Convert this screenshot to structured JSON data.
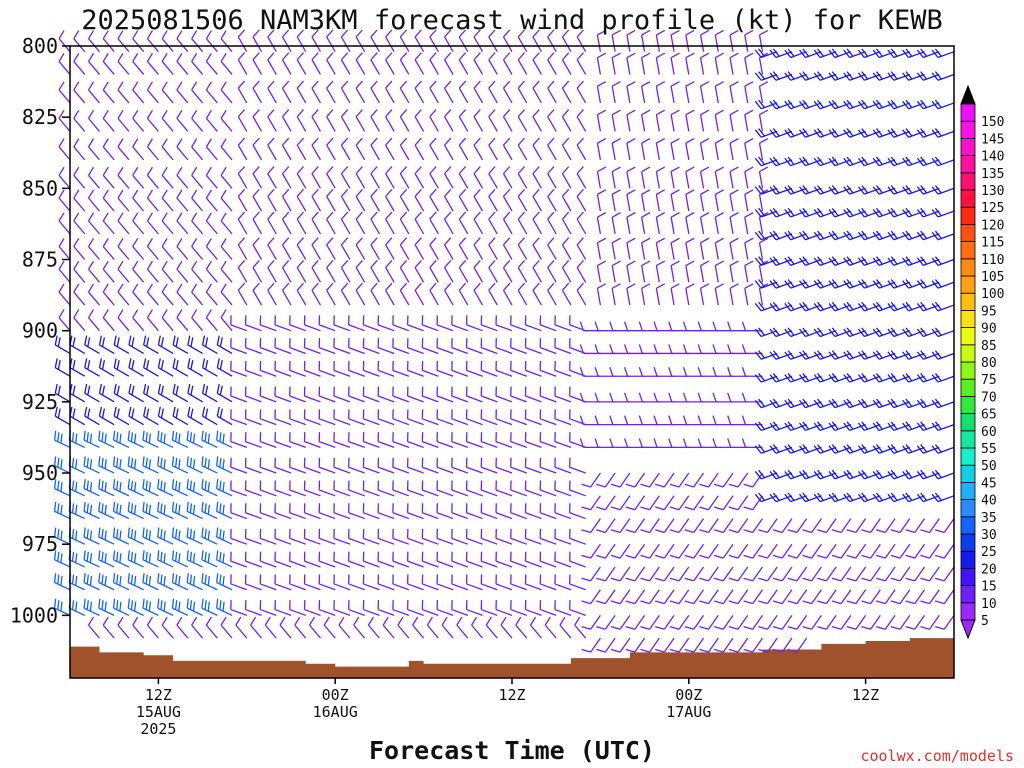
{
  "chart_data": {
    "type": "wind-barb-time-height",
    "title": "2025081506 NAM3KM forecast wind profile (kt) for KEWB",
    "xlabel": "Forecast Time (UTC)",
    "ylabel": "",
    "credit": "coolwx.com/models",
    "y_axis": {
      "ticks": [
        800,
        825,
        850,
        875,
        900,
        925,
        950,
        975,
        1000
      ],
      "range": [
        800,
        1022
      ],
      "reversed": true,
      "unit": "hPa"
    },
    "x_axis": {
      "range_hours": [
        0,
        60
      ],
      "ticks": [
        {
          "hour": 6,
          "lines": [
            "12Z",
            "15AUG",
            "2025"
          ]
        },
        {
          "hour": 18,
          "lines": [
            "00Z",
            "16AUG"
          ]
        },
        {
          "hour": 30,
          "lines": [
            "12Z"
          ]
        },
        {
          "hour": 42,
          "lines": [
            "00Z",
            "17AUG"
          ]
        },
        {
          "hour": 54,
          "lines": [
            "12Z"
          ]
        }
      ]
    },
    "colorbar": {
      "levels": [
        5,
        10,
        15,
        20,
        25,
        30,
        35,
        40,
        45,
        50,
        55,
        60,
        65,
        70,
        75,
        80,
        85,
        90,
        95,
        100,
        105,
        110,
        115,
        120,
        125,
        130,
        135,
        140,
        145,
        150
      ],
      "colors": [
        "#9b29ff",
        "#6f1fff",
        "#4412ff",
        "#1818f0",
        "#0a3cf0",
        "#1464ff",
        "#2a8cff",
        "#1fb0ff",
        "#13d0e8",
        "#14f0c8",
        "#13e8a0",
        "#13e070",
        "#33e83c",
        "#5af020",
        "#8cf814",
        "#c8fa10",
        "#f0fa10",
        "#ffe010",
        "#ffc010",
        "#ffa010",
        "#ff8a10",
        "#ff7010",
        "#ff5010",
        "#ff2810",
        "#ff1040",
        "#ff1070",
        "#ff10a0",
        "#ff10c8",
        "#ff10e8",
        "#f010ff"
      ],
      "arrows": true
    },
    "grid": false,
    "terrain_color": "#a0522d",
    "surface_pressure": [
      {
        "hour": 0,
        "p": 1011
      },
      {
        "hour": 2,
        "p": 1013
      },
      {
        "hour": 5,
        "p": 1014
      },
      {
        "hour": 7,
        "p": 1016
      },
      {
        "hour": 11,
        "p": 1016
      },
      {
        "hour": 14,
        "p": 1016
      },
      {
        "hour": 16,
        "p": 1017
      },
      {
        "hour": 18,
        "p": 1018
      },
      {
        "hour": 23,
        "p": 1016
      },
      {
        "hour": 24,
        "p": 1017
      },
      {
        "hour": 30,
        "p": 1017
      },
      {
        "hour": 34,
        "p": 1015
      },
      {
        "hour": 36,
        "p": 1015
      },
      {
        "hour": 38,
        "p": 1013
      },
      {
        "hour": 45,
        "p": 1013
      },
      {
        "hour": 47,
        "p": 1012
      },
      {
        "hour": 51,
        "p": 1010
      },
      {
        "hour": 54,
        "p": 1009
      },
      {
        "hour": 57,
        "p": 1008
      },
      {
        "hour": 60,
        "p": 1007
      }
    ],
    "barb_levels_hPa": [
      802,
      810,
      820,
      830,
      840,
      850,
      858,
      866,
      875,
      883,
      891,
      900,
      908,
      916,
      925,
      933,
      941,
      950,
      958,
      966,
      975,
      983,
      991,
      1000,
      1008,
      1016
    ],
    "barb_hours": [
      0,
      1,
      2,
      3,
      4,
      5,
      6,
      7,
      8,
      9,
      10,
      11,
      12,
      13,
      14,
      15,
      16,
      17,
      18,
      19,
      20,
      21,
      22,
      23,
      24,
      25,
      26,
      27,
      28,
      29,
      30,
      31,
      32,
      33,
      34,
      35,
      36,
      37,
      38,
      39,
      40,
      41,
      42,
      43,
      44,
      45,
      46,
      47,
      48,
      49,
      50,
      51,
      52,
      53,
      54,
      55,
      56,
      57,
      58,
      59,
      60
    ],
    "wind_regimes": [
      {
        "hours": [
          0,
          12
        ],
        "p": [
          938,
          1000
        ],
        "dir_deg": 295,
        "speed_kt": 30
      },
      {
        "hours": [
          0,
          12
        ],
        "p": [
          900,
          938
        ],
        "dir_deg": 300,
        "speed_kt": 22
      },
      {
        "hours": [
          0,
          12
        ],
        "p": [
          800,
          900
        ],
        "dir_deg": 320,
        "speed_kt": 12
      },
      {
        "hours": [
          12,
          40
        ],
        "p": [
          800,
          900
        ],
        "dir_deg": 330,
        "speed_kt": 10
      },
      {
        "hours": [
          12,
          36
        ],
        "p": [
          900,
          1000
        ],
        "dir_deg": 290,
        "speed_kt": 12
      },
      {
        "hours": [
          36,
          60
        ],
        "p": [
          800,
          900
        ],
        "dir_deg": 350,
        "speed_kt": 10
      },
      {
        "hours": [
          36,
          60
        ],
        "p": [
          900,
          945
        ],
        "dir_deg": 270,
        "speed_kt": 12
      },
      {
        "hours": [
          36,
          60
        ],
        "p": [
          945,
          1020
        ],
        "dir_deg": 215,
        "speed_kt": 12
      },
      {
        "hours": [
          48,
          60
        ],
        "p": [
          800,
          960
        ],
        "dir_deg": 250,
        "speed_kt": 20
      }
    ]
  }
}
